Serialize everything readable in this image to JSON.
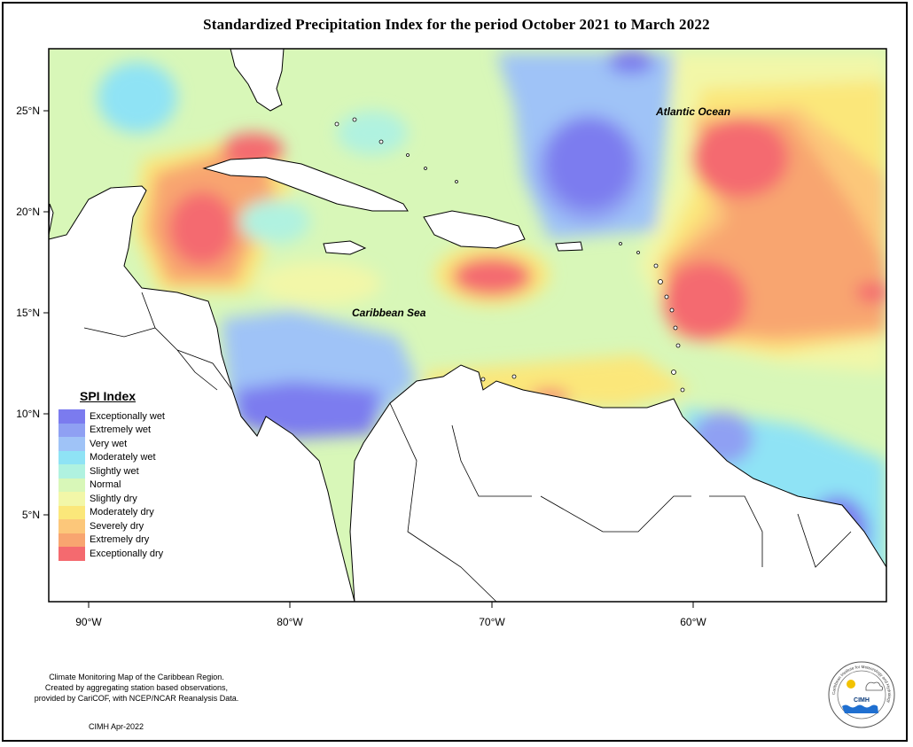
{
  "title": "Standardized Precipitation Index for the period October 2021 to March 2022",
  "map": {
    "lon_range": [
      -92,
      -51
    ],
    "lat_range": [
      1,
      28
    ],
    "lat_ticks": [
      "25°N",
      "20°N",
      "15°N",
      "10°N",
      "5°N"
    ],
    "lon_ticks": [
      "90°W",
      "80°W",
      "70°W",
      "60°W"
    ],
    "place_labels": {
      "atlantic": "Atlantic Ocean",
      "caribbean": "Caribbean Sea"
    }
  },
  "legend": {
    "title": "SPI Index",
    "items": [
      {
        "label": "Exceptionally wet",
        "color": "#7b7bef"
      },
      {
        "label": "Extremely wet",
        "color": "#8fa0f3"
      },
      {
        "label": "Very wet",
        "color": "#9fc3f7"
      },
      {
        "label": "Moderately wet",
        "color": "#8fe3f5"
      },
      {
        "label": "Slightly wet",
        "color": "#b0f2e0"
      },
      {
        "label": "Normal",
        "color": "#d8f7b8"
      },
      {
        "label": "Slightly dry",
        "color": "#f2f7a8"
      },
      {
        "label": "Moderately dry",
        "color": "#fbe77a"
      },
      {
        "label": "Severely dry",
        "color": "#fcc77a"
      },
      {
        "label": "Extremely dry",
        "color": "#f8a570"
      },
      {
        "label": "Exceptionally dry",
        "color": "#f46a6f"
      }
    ]
  },
  "credits": {
    "lines": [
      "Climate Monitoring Map of the Caribbean Region.",
      "Created by aggregating station based observations,",
      "provided by CariCOF, with NCEP/NCAR Reanalysis Data."
    ],
    "date": "CIMH Apr-2022"
  },
  "logo": {
    "name": "CIMH",
    "ring_text": "Caribbean Institute for Meteorology and Hydrology"
  }
}
